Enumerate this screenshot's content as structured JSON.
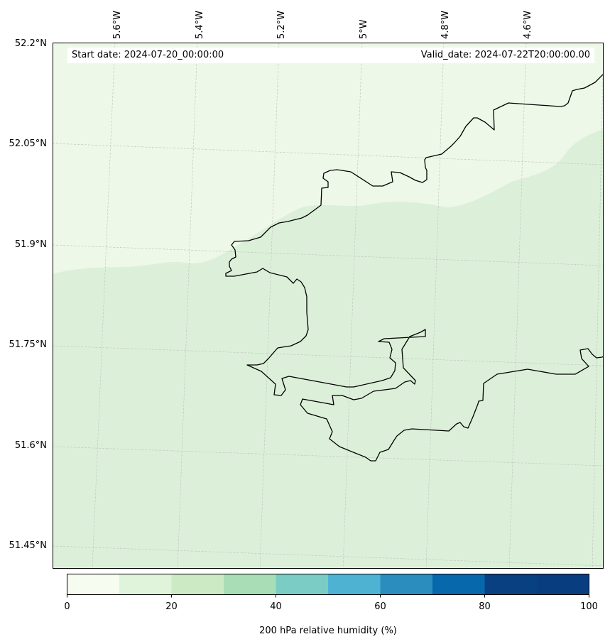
{
  "map": {
    "start_date_text": "Start date: 2024-07-20_00:00:00",
    "valid_date_text": "Valid_date: 2024-07-22T20:00:00.00",
    "longitude_labels": [
      "5.6°W",
      "5.4°W",
      "5.2°W",
      "5°W",
      "4.8°W",
      "4.6°W"
    ],
    "latitude_labels": [
      "52.2°N",
      "52.05°N",
      "51.9°N",
      "51.75°N",
      "51.6°N",
      "51.45°N"
    ],
    "colors": {
      "coastline": "#000000",
      "gridline": "#b8b8b8",
      "field_0_10": "#f0f9e8",
      "field_10_20": "#dcf0d9"
    }
  },
  "colorbar": {
    "label": "200 hPa relative humidity (%)",
    "ticks": [
      "0",
      "20",
      "40",
      "60",
      "80",
      "100"
    ],
    "colors": [
      "#f7fcf0",
      "#e0f3db",
      "#ccebc5",
      "#a8ddb5",
      "#7bccc4",
      "#4eb3d3",
      "#2b8cbe",
      "#0868ac",
      "#084081",
      "#083d7f"
    ]
  }
}
